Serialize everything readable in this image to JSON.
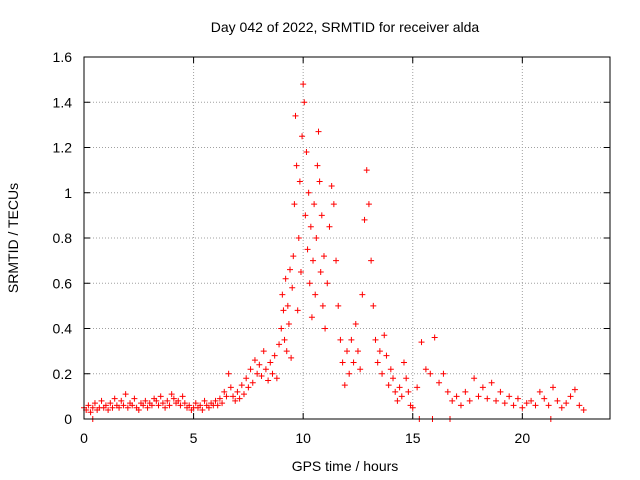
{
  "chart_data": {
    "type": "scatter",
    "title": "Day 042 of 2022, SRMTID for receiver alda",
    "xlabel": "GPS time / hours",
    "ylabel": "SRMTID / TECUs",
    "xlim": [
      0,
      24
    ],
    "ylim": [
      0,
      1.6
    ],
    "xticks": [
      0,
      5,
      10,
      15,
      20
    ],
    "xtick_labels": [
      "0",
      "5",
      "10",
      "15",
      "20"
    ],
    "yticks": [
      0,
      0.2,
      0.4,
      0.6,
      0.8,
      1.0,
      1.2,
      1.4,
      1.6
    ],
    "ytick_labels": [
      "0",
      "0.2",
      "0.4",
      "0.6",
      "0.8",
      "1",
      "1.2",
      "1.4",
      "1.6"
    ],
    "grid": true,
    "marker": "+",
    "marker_color": "#ff0000",
    "series": [
      {
        "name": "SRMTID",
        "points": [
          [
            0.0,
            0.05
          ],
          [
            0.1,
            0.04
          ],
          [
            0.2,
            0.06
          ],
          [
            0.3,
            0.03
          ],
          [
            0.4,
            0.05
          ],
          [
            0.5,
            0.07
          ],
          [
            0.6,
            0.04
          ],
          [
            0.7,
            0.05
          ],
          [
            0.8,
            0.08
          ],
          [
            0.9,
            0.05
          ],
          [
            1.0,
            0.06
          ],
          [
            1.1,
            0.04
          ],
          [
            1.2,
            0.07
          ],
          [
            1.3,
            0.05
          ],
          [
            1.4,
            0.09
          ],
          [
            1.5,
            0.06
          ],
          [
            1.6,
            0.05
          ],
          [
            1.7,
            0.08
          ],
          [
            1.8,
            0.06
          ],
          [
            1.9,
            0.11
          ],
          [
            2.0,
            0.05
          ],
          [
            2.1,
            0.07
          ],
          [
            2.2,
            0.06
          ],
          [
            2.3,
            0.09
          ],
          [
            2.4,
            0.05
          ],
          [
            2.5,
            0.04
          ],
          [
            2.6,
            0.07
          ],
          [
            2.7,
            0.06
          ],
          [
            2.8,
            0.08
          ],
          [
            2.9,
            0.05
          ],
          [
            3.0,
            0.07
          ],
          [
            3.1,
            0.06
          ],
          [
            3.2,
            0.09
          ],
          [
            3.3,
            0.08
          ],
          [
            3.4,
            0.06
          ],
          [
            3.5,
            0.1
          ],
          [
            3.6,
            0.07
          ],
          [
            3.7,
            0.05
          ],
          [
            3.8,
            0.08
          ],
          [
            3.9,
            0.06
          ],
          [
            4.0,
            0.11
          ],
          [
            4.1,
            0.09
          ],
          [
            4.2,
            0.07
          ],
          [
            4.3,
            0.08
          ],
          [
            4.4,
            0.06
          ],
          [
            4.5,
            0.1
          ],
          [
            4.6,
            0.07
          ],
          [
            4.7,
            0.05
          ],
          [
            4.8,
            0.06
          ],
          [
            4.9,
            0.04
          ],
          [
            5.0,
            0.05
          ],
          [
            5.1,
            0.07
          ],
          [
            5.2,
            0.05
          ],
          [
            5.3,
            0.06
          ],
          [
            5.4,
            0.04
          ],
          [
            5.5,
            0.08
          ],
          [
            5.6,
            0.06
          ],
          [
            5.7,
            0.05
          ],
          [
            5.8,
            0.07
          ],
          [
            5.9,
            0.06
          ],
          [
            6.0,
            0.08
          ],
          [
            6.1,
            0.06
          ],
          [
            6.2,
            0.09
          ],
          [
            6.3,
            0.07
          ],
          [
            6.4,
            0.12
          ],
          [
            6.5,
            0.1
          ],
          [
            6.6,
            0.2
          ],
          [
            6.7,
            0.14
          ],
          [
            6.8,
            0.1
          ],
          [
            6.9,
            0.08
          ],
          [
            7.0,
            0.12
          ],
          [
            7.1,
            0.09
          ],
          [
            7.2,
            0.15
          ],
          [
            7.3,
            0.11
          ],
          [
            7.4,
            0.18
          ],
          [
            7.5,
            0.14
          ],
          [
            7.6,
            0.22
          ],
          [
            7.7,
            0.16
          ],
          [
            7.8,
            0.26
          ],
          [
            7.9,
            0.2
          ],
          [
            8.0,
            0.24
          ],
          [
            8.1,
            0.19
          ],
          [
            8.2,
            0.3
          ],
          [
            8.3,
            0.22
          ],
          [
            8.4,
            0.17
          ],
          [
            8.5,
            0.25
          ],
          [
            8.6,
            0.2
          ],
          [
            8.7,
            0.28
          ],
          [
            8.8,
            0.18
          ],
          [
            8.9,
            0.33
          ],
          [
            9.0,
            0.4
          ],
          [
            9.05,
            0.55
          ],
          [
            9.1,
            0.48
          ],
          [
            9.15,
            0.35
          ],
          [
            9.2,
            0.62
          ],
          [
            9.25,
            0.3
          ],
          [
            9.3,
            0.5
          ],
          [
            9.35,
            0.42
          ],
          [
            9.4,
            0.66
          ],
          [
            9.45,
            0.27
          ],
          [
            9.5,
            0.58
          ],
          [
            9.55,
            0.72
          ],
          [
            9.6,
            0.95
          ],
          [
            9.65,
            1.34
          ],
          [
            9.7,
            1.12
          ],
          [
            9.75,
            0.48
          ],
          [
            9.8,
            0.8
          ],
          [
            9.85,
            1.05
          ],
          [
            9.9,
            0.65
          ],
          [
            9.95,
            1.25
          ],
          [
            10.0,
            1.48
          ],
          [
            10.05,
            1.4
          ],
          [
            10.1,
            0.9
          ],
          [
            10.15,
            1.18
          ],
          [
            10.2,
            0.75
          ],
          [
            10.25,
            1.0
          ],
          [
            10.3,
            0.6
          ],
          [
            10.35,
            0.85
          ],
          [
            10.4,
            0.45
          ],
          [
            10.45,
            0.7
          ],
          [
            10.5,
            0.95
          ],
          [
            10.55,
            0.55
          ],
          [
            10.6,
            0.8
          ],
          [
            10.65,
            1.12
          ],
          [
            10.7,
            1.27
          ],
          [
            10.75,
            1.05
          ],
          [
            10.8,
            0.65
          ],
          [
            10.85,
            0.9
          ],
          [
            10.9,
            0.5
          ],
          [
            10.95,
            0.72
          ],
          [
            11.0,
            0.4
          ],
          [
            11.1,
            0.6
          ],
          [
            11.2,
            0.85
          ],
          [
            11.3,
            1.03
          ],
          [
            11.4,
            0.95
          ],
          [
            11.5,
            0.7
          ],
          [
            11.6,
            0.5
          ],
          [
            11.7,
            0.35
          ],
          [
            11.8,
            0.25
          ],
          [
            11.9,
            0.15
          ],
          [
            12.0,
            0.3
          ],
          [
            12.1,
            0.2
          ],
          [
            12.2,
            0.35
          ],
          [
            12.3,
            0.25
          ],
          [
            12.4,
            0.42
          ],
          [
            12.5,
            0.3
          ],
          [
            12.6,
            0.22
          ],
          [
            12.7,
            0.55
          ],
          [
            12.8,
            0.88
          ],
          [
            12.9,
            1.1
          ],
          [
            13.0,
            0.95
          ],
          [
            13.1,
            0.7
          ],
          [
            13.2,
            0.5
          ],
          [
            13.3,
            0.35
          ],
          [
            13.4,
            0.25
          ],
          [
            13.5,
            0.3
          ],
          [
            13.6,
            0.2
          ],
          [
            13.7,
            0.37
          ],
          [
            13.8,
            0.28
          ],
          [
            13.9,
            0.15
          ],
          [
            14.0,
            0.22
          ],
          [
            14.1,
            0.18
          ],
          [
            14.2,
            0.12
          ],
          [
            14.3,
            0.08
          ],
          [
            14.4,
            0.14
          ],
          [
            14.5,
            0.1
          ],
          [
            14.6,
            0.25
          ],
          [
            14.7,
            0.18
          ],
          [
            14.8,
            0.12
          ],
          [
            14.9,
            0.06
          ],
          [
            15.0,
            0.05
          ],
          [
            15.2,
            0.14
          ],
          [
            15.4,
            0.34
          ],
          [
            15.6,
            0.22
          ],
          [
            15.8,
            0.2
          ],
          [
            16.0,
            0.36
          ],
          [
            16.2,
            0.16
          ],
          [
            16.4,
            0.2
          ],
          [
            16.6,
            0.12
          ],
          [
            16.8,
            0.08
          ],
          [
            17.0,
            0.1
          ],
          [
            17.2,
            0.06
          ],
          [
            17.4,
            0.12
          ],
          [
            17.6,
            0.08
          ],
          [
            17.8,
            0.18
          ],
          [
            18.0,
            0.1
          ],
          [
            18.2,
            0.14
          ],
          [
            18.4,
            0.09
          ],
          [
            18.6,
            0.16
          ],
          [
            18.8,
            0.08
          ],
          [
            19.0,
            0.12
          ],
          [
            19.2,
            0.07
          ],
          [
            19.4,
            0.1
          ],
          [
            19.6,
            0.06
          ],
          [
            19.8,
            0.09
          ],
          [
            20.0,
            0.05
          ],
          [
            20.2,
            0.07
          ],
          [
            20.4,
            0.08
          ],
          [
            20.6,
            0.06
          ],
          [
            20.8,
            0.12
          ],
          [
            21.0,
            0.09
          ],
          [
            21.2,
            0.06
          ],
          [
            21.4,
            0.14
          ],
          [
            21.6,
            0.08
          ],
          [
            21.8,
            0.05
          ],
          [
            22.0,
            0.07
          ],
          [
            22.2,
            0.1
          ],
          [
            22.4,
            0.13
          ],
          [
            22.6,
            0.06
          ],
          [
            22.8,
            0.04
          ],
          [
            0.4,
            0.0
          ],
          [
            15.3,
            0.0
          ],
          [
            15.9,
            0.0
          ],
          [
            16.7,
            0.0
          ],
          [
            21.3,
            0.0
          ]
        ]
      }
    ]
  }
}
